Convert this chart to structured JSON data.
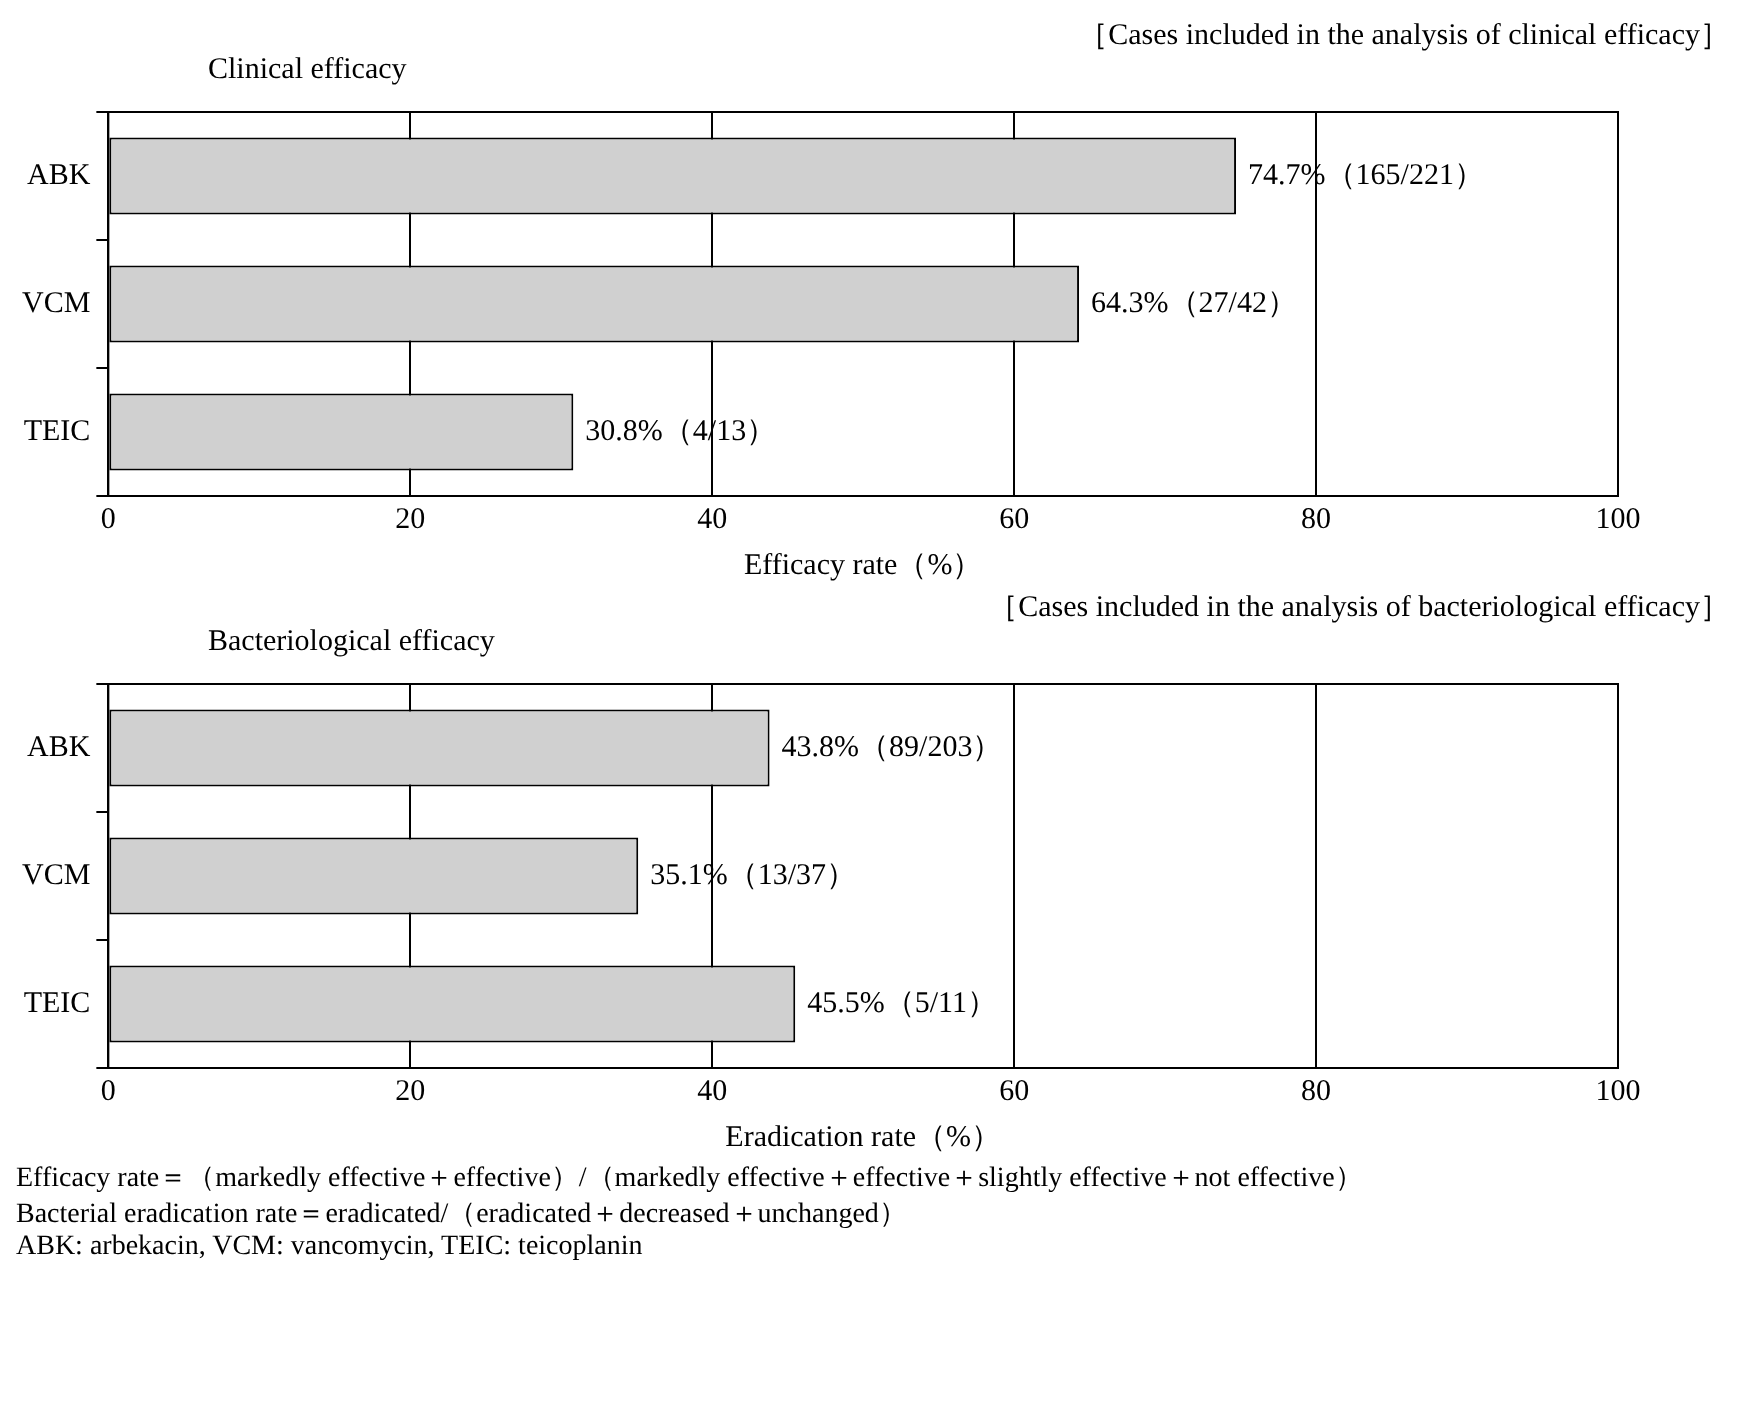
{
  "chart_data": [
    {
      "type": "bar",
      "orientation": "horizontal",
      "title": "Clinical efficacy",
      "subtitle": "［Cases included in the analysis of clinical efficacy］",
      "xlabel": "Efficacy rate（%）",
      "categories": [
        "ABK",
        "VCM",
        "TEIC"
      ],
      "values": [
        74.7,
        64.3,
        30.8
      ],
      "value_labels": [
        "74.7%（165/221）",
        "64.3%（27/42）",
        "30.8%（4/13）"
      ],
      "color": "#d0d0d0",
      "xlim": [
        0,
        100
      ],
      "xticks": [
        0,
        20,
        40,
        60,
        80,
        100
      ],
      "grid": "x"
    },
    {
      "type": "bar",
      "orientation": "horizontal",
      "title": "Bacteriological efficacy",
      "subtitle": "［Cases included in the analysis of bacteriological efficacy］",
      "xlabel": "Eradication rate（%）",
      "categories": [
        "ABK",
        "VCM",
        "TEIC"
      ],
      "values": [
        43.8,
        35.1,
        45.5
      ],
      "value_labels": [
        "43.8%（89/203）",
        "35.1%（13/37）",
        "45.5%（5/11）"
      ],
      "color": "#d0d0d0",
      "xlim": [
        0,
        100
      ],
      "xticks": [
        0,
        20,
        40,
        60,
        80,
        100
      ],
      "grid": "x",
      "annotations": [
        "Efficacy rate＝（markedly effective＋effective）/（markedly effective＋effective＋slightly effective＋not effective）",
        "Bacterial eradication rate＝eradicated/（eradicated＋decreased＋unchanged）",
        "ABK: arbekacin, VCM: vancomycin, TEIC: teicoplanin"
      ]
    }
  ]
}
